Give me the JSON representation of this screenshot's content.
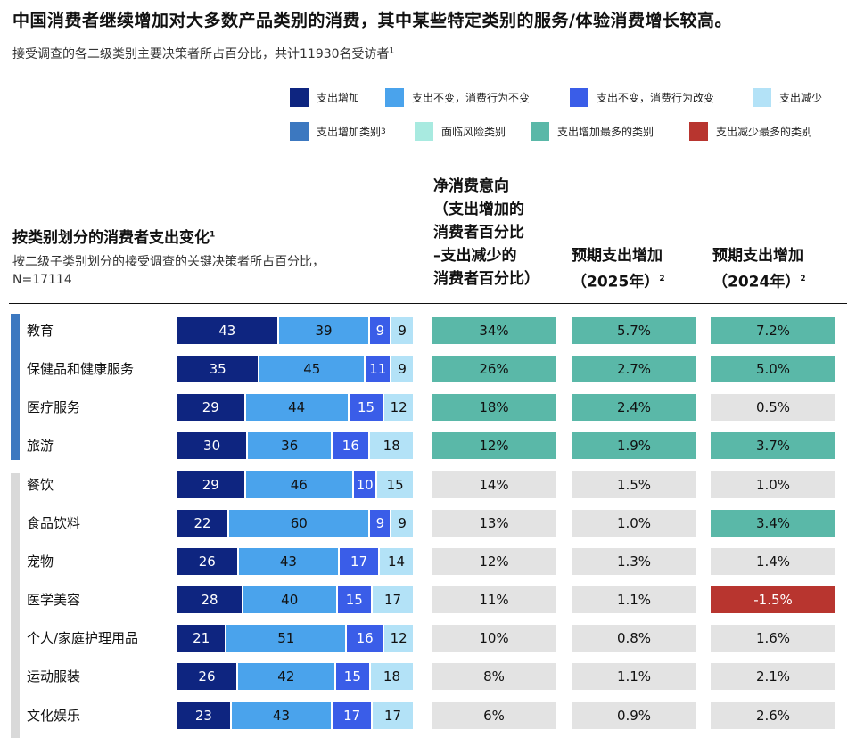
{
  "title": "中国消费者继续增加对大多数产品类别的消费，其中某些特定类别的服务/体验消费增长较高。",
  "subtitle": "接受调查的各二级类别主要决策者所占百分比，共计11930名受访者",
  "subtitle_sup": "1",
  "legend": [
    {
      "label": "支出增加",
      "color": "#0e2580"
    },
    {
      "label": "支出不变，消费行为不变",
      "color": "#4aa3ec"
    },
    {
      "label": "支出不变，消费行为改变",
      "color": "#3a5de8"
    },
    {
      "label": "支出减少",
      "color": "#b3e2f7"
    },
    {
      "label": "支出增加类别",
      "sup": "3",
      "color": "#3c78c0"
    },
    {
      "label": "面临风险类别",
      "color": "#a8eae0"
    },
    {
      "label": "支出增加最多的类别",
      "color": "#5ab8a8"
    },
    {
      "label": "支出减少最多的类别",
      "color": "#b8352f"
    }
  ],
  "section": {
    "title": "按类别划分的消费者支出变化",
    "title_sup": "1",
    "subtitle_line1": "按二级子类别划分的接受调查的关键决策者所占百分比，",
    "subtitle_line2": "N=17114"
  },
  "columns": {
    "net": {
      "l1": "净消费意向",
      "l2": "（支出增加的",
      "l3": "消费者百分比",
      "l4": "–支出减少的",
      "l5": "消费者百分比）"
    },
    "exp2025": {
      "l1": "预期支出增加",
      "l2": "（2025年）",
      "sup": "2"
    },
    "exp2024": {
      "l1": "预期支出增加",
      "l2": "（2024年）",
      "sup": "2"
    }
  },
  "cell_colors": {
    "teal": "#5ab8a8",
    "gray": "#e3e3e3",
    "red": "#b8352f"
  },
  "chart_data": {
    "type": "bar",
    "stacked": true,
    "orientation": "horizontal",
    "categories": [
      "教育",
      "保健品和健康服务",
      "医疗服务",
      "旅游",
      "餐饮",
      "食品饮料",
      "宠物",
      "医学美容",
      "个人/家庭护理用品",
      "运动服装",
      "文化娱乐"
    ],
    "category_groups": [
      "支出增加类别",
      "支出增加类别",
      "支出增加类别",
      "支出增加类别",
      "",
      "",
      "",
      "",
      "",
      "",
      ""
    ],
    "series": [
      {
        "name": "支出增加",
        "color": "#0e2580",
        "values": [
          43,
          35,
          29,
          30,
          29,
          22,
          26,
          28,
          21,
          26,
          23
        ]
      },
      {
        "name": "支出不变，消费行为不变",
        "color": "#4aa3ec",
        "values": [
          39,
          45,
          44,
          36,
          46,
          60,
          43,
          40,
          51,
          42,
          43
        ]
      },
      {
        "name": "支出不变，消费行为改变",
        "color": "#3a5de8",
        "values": [
          9,
          11,
          15,
          16,
          10,
          9,
          17,
          15,
          16,
          15,
          17
        ]
      },
      {
        "name": "支出减少",
        "color": "#b3e2f7",
        "values": [
          9,
          9,
          12,
          18,
          15,
          9,
          14,
          17,
          12,
          18,
          17
        ]
      }
    ],
    "net_intent": [
      "34%",
      "26%",
      "18%",
      "12%",
      "14%",
      "13%",
      "12%",
      "11%",
      "10%",
      "8%",
      "6%"
    ],
    "net_intent_highlight": [
      "teal",
      "teal",
      "teal",
      "teal",
      "gray",
      "gray",
      "gray",
      "gray",
      "gray",
      "gray",
      "gray"
    ],
    "expected_2025": [
      "5.7%",
      "2.7%",
      "2.4%",
      "1.9%",
      "1.5%",
      "1.0%",
      "1.3%",
      "1.1%",
      "0.8%",
      "1.1%",
      "0.9%"
    ],
    "expected_2025_highlight": [
      "teal",
      "teal",
      "teal",
      "teal",
      "gray",
      "gray",
      "gray",
      "gray",
      "gray",
      "gray",
      "gray"
    ],
    "expected_2024": [
      "7.2%",
      "5.0%",
      "0.5%",
      "3.7%",
      "1.0%",
      "3.4%",
      "1.4%",
      "-1.5%",
      "1.6%",
      "2.1%",
      "2.6%"
    ],
    "expected_2024_highlight": [
      "teal",
      "teal",
      "gray",
      "teal",
      "gray",
      "teal",
      "gray",
      "red",
      "gray",
      "gray",
      "gray"
    ]
  }
}
